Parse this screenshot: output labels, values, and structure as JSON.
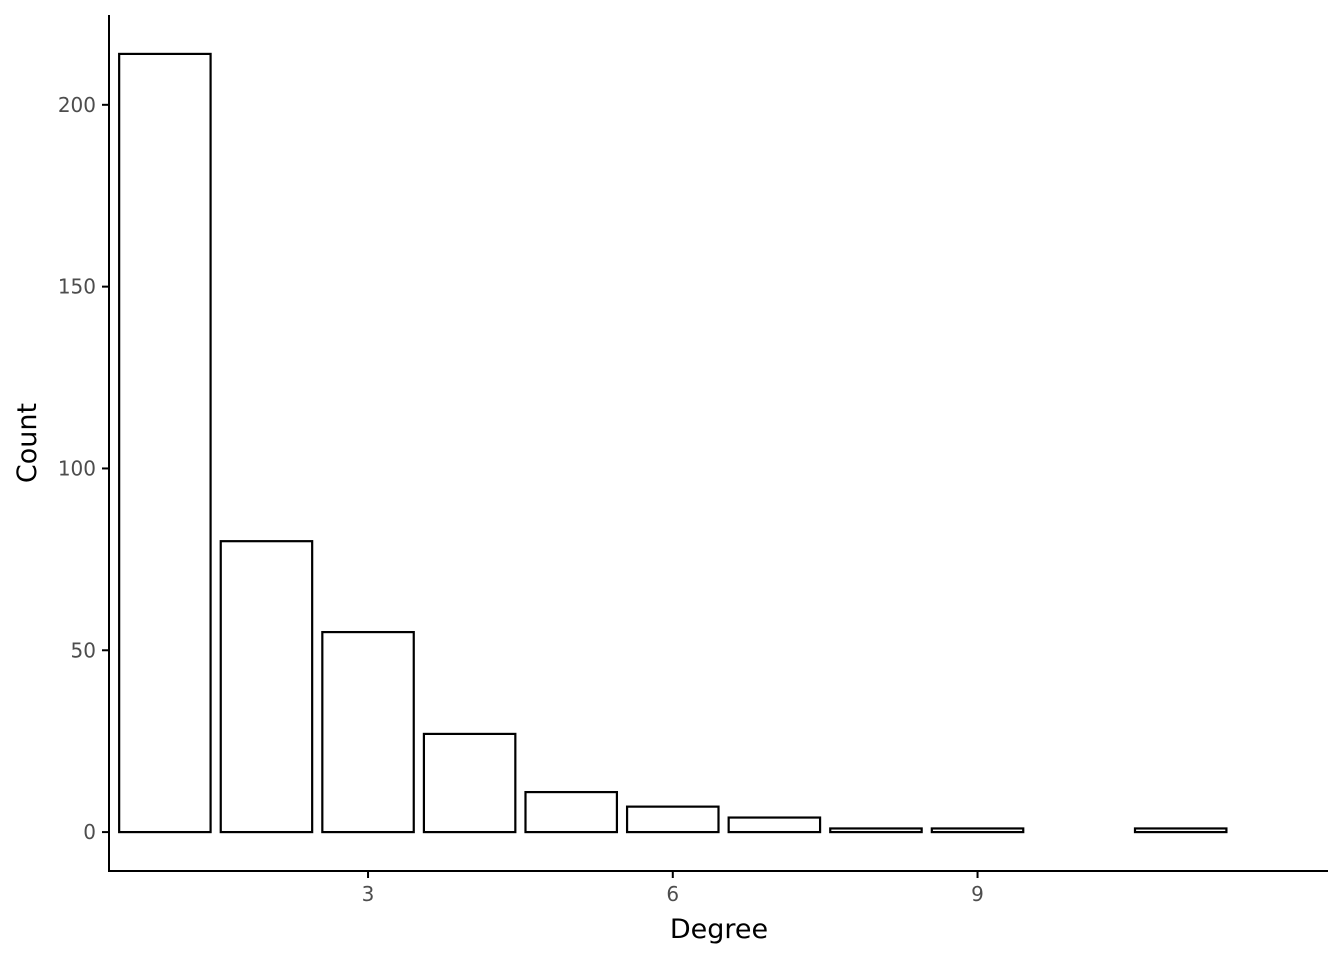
{
  "chart_data": {
    "type": "bar",
    "title": "",
    "xlabel": "Degree",
    "ylabel": "Count",
    "x": [
      1,
      2,
      3,
      4,
      5,
      6,
      7,
      8,
      9,
      11
    ],
    "values": [
      214,
      80,
      55,
      27,
      11,
      7,
      4,
      1,
      1,
      1
    ],
    "xlim": [
      0.45,
      12.45
    ],
    "ylim": [
      -10.7,
      224.7
    ],
    "x_ticks": [
      3,
      6,
      9
    ],
    "x_tick_labels": [
      "3",
      "6",
      "9"
    ],
    "y_ticks": [
      0,
      50,
      100,
      150,
      200
    ],
    "y_tick_labels": [
      "0",
      "50",
      "100",
      "150",
      "200"
    ],
    "bar_fill": "#ffffff",
    "bar_stroke": "#000000",
    "grid": false,
    "legend": "none"
  }
}
